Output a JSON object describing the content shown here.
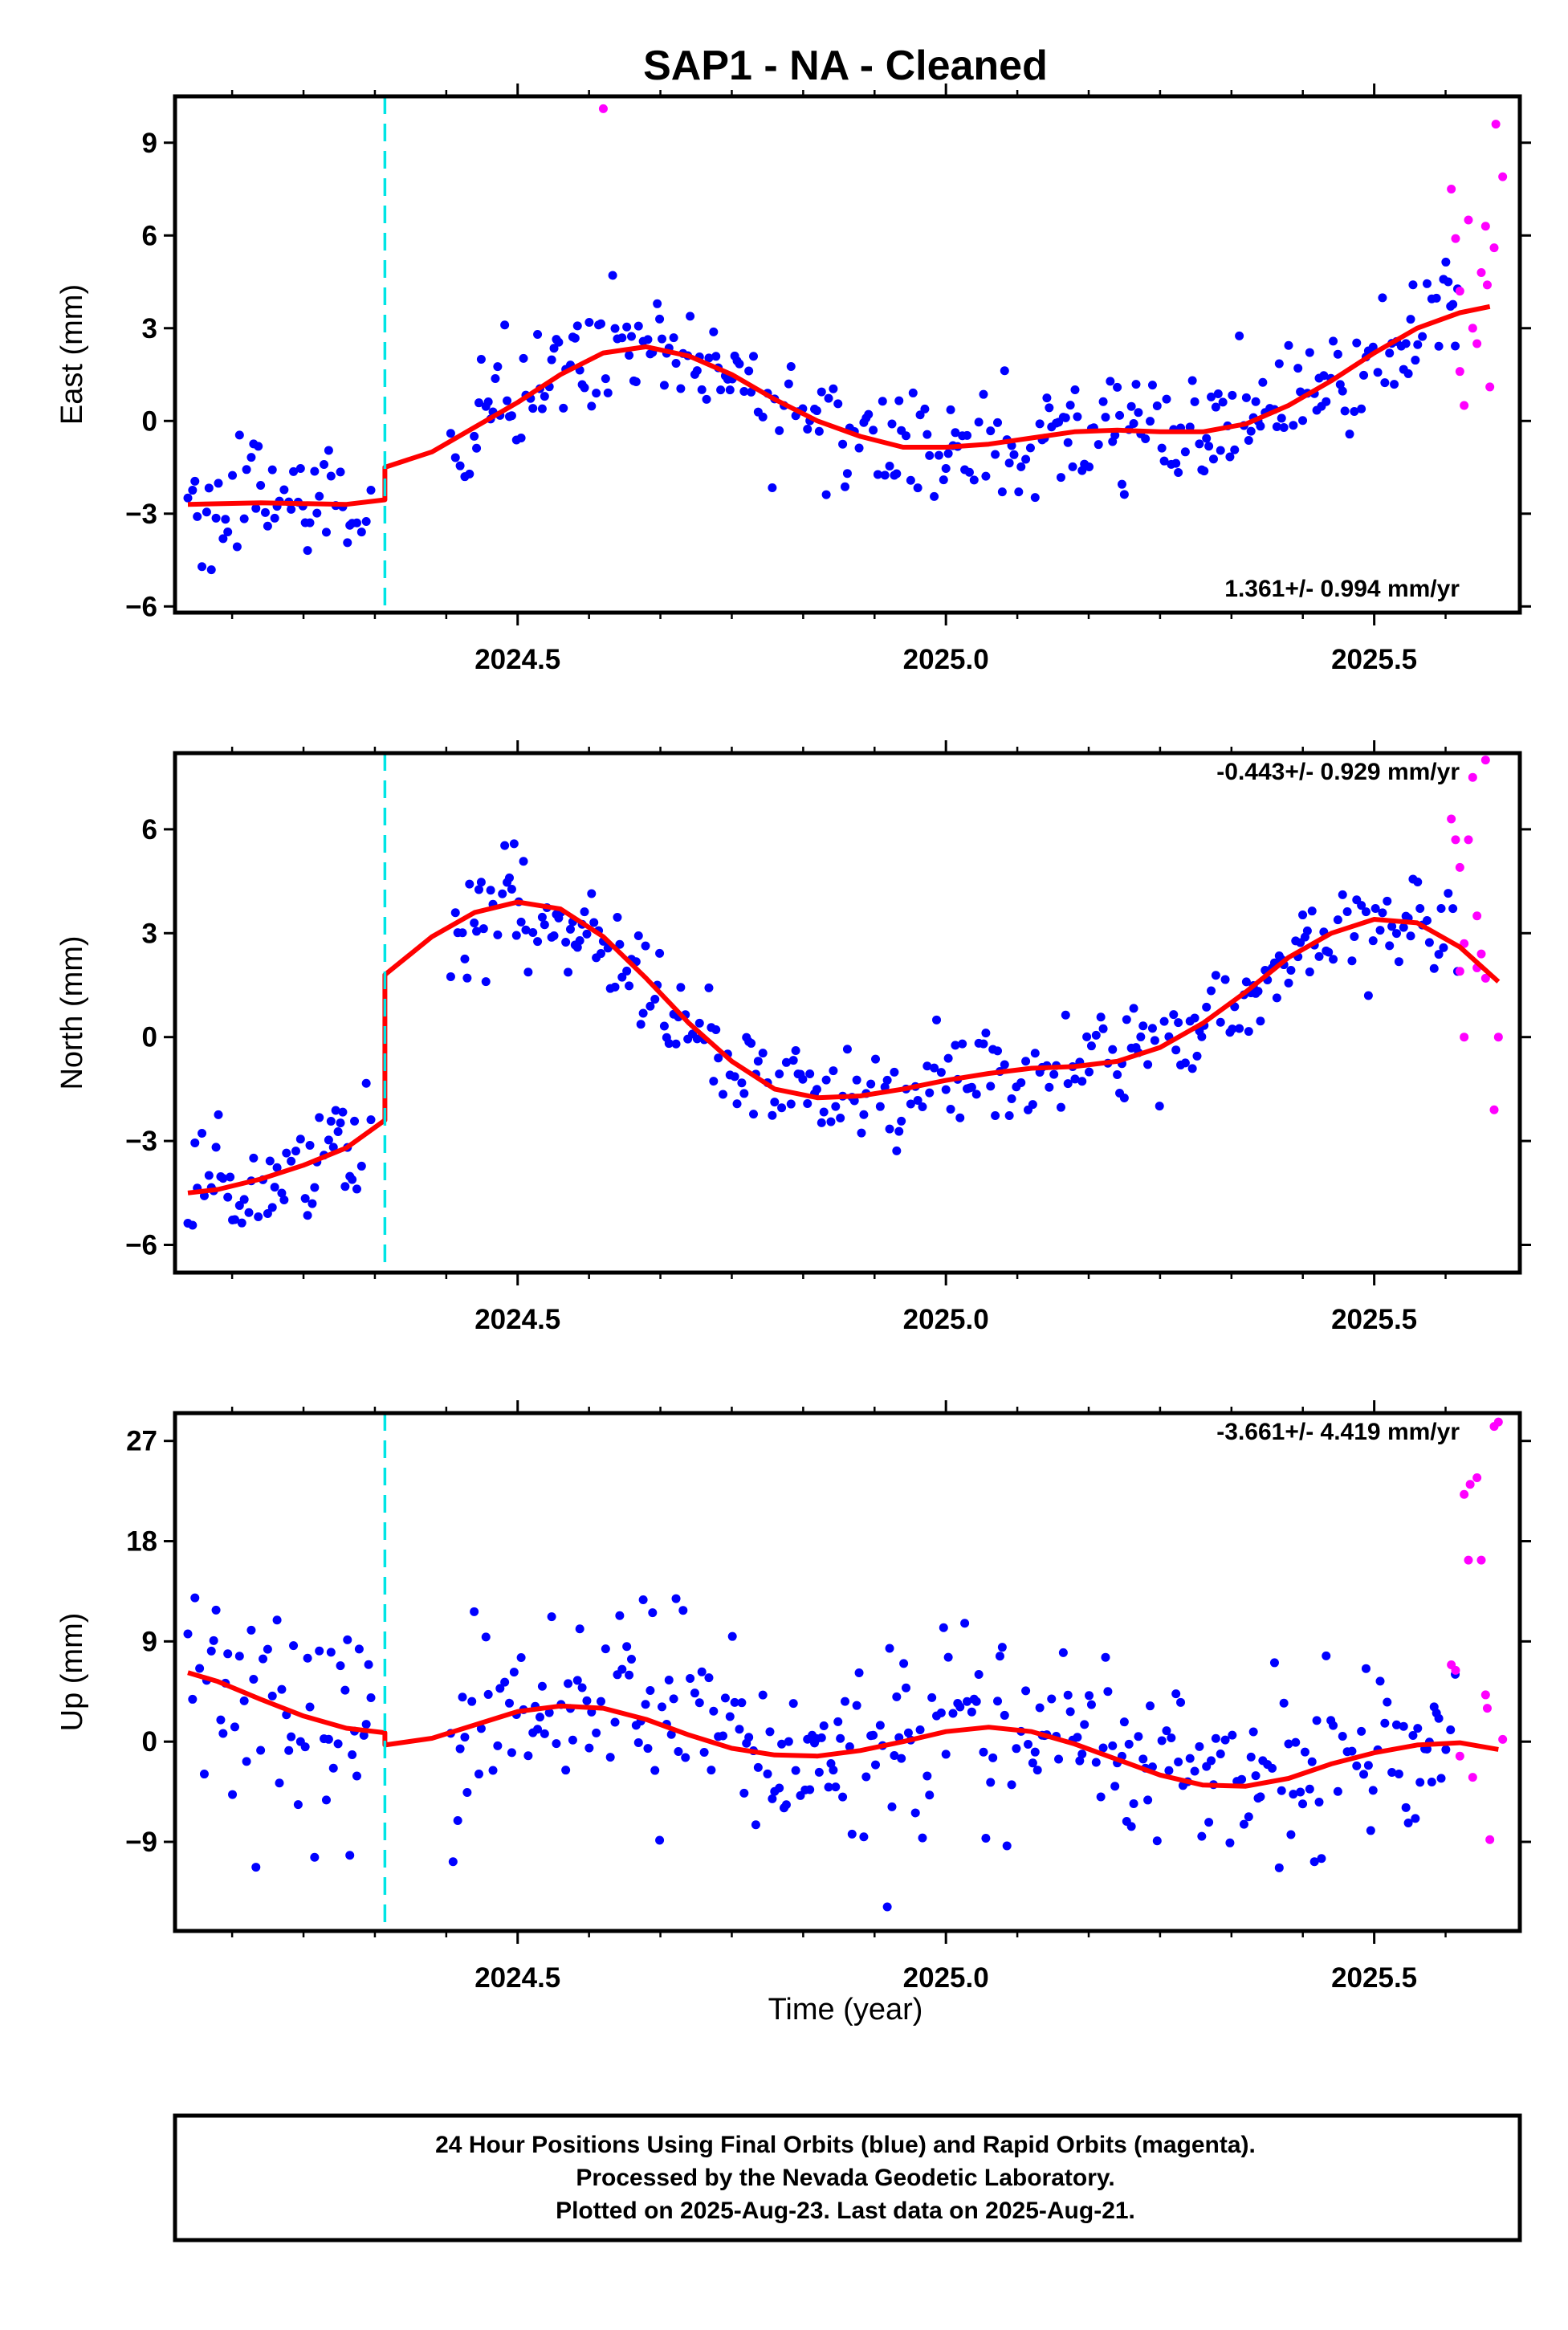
{
  "title": "SAP1  - NA - Cleaned",
  "xlabel": "Time (year)",
  "footer": {
    "line1": "24 Hour Positions Using Final Orbits (blue) and Rapid Orbits (magenta).",
    "line2": "Processed by the Nevada Geodetic Laboratory.",
    "line3": "Plotted on 2025-Aug-23. Last data on 2025-Aug-21."
  },
  "colors": {
    "final": "#0000ff",
    "rapid": "#ff00ff",
    "model": "#ff0000",
    "offset": "#00e5e5",
    "frame": "#000000"
  },
  "chart_data": [
    {
      "type": "scatter",
      "component": "east",
      "ylabel": "East (mm)",
      "rate_label": "1.361+/- 0.994 mm/yr",
      "rate_position": "bottom-right",
      "xlim": [
        2024.1,
        2025.67
      ],
      "ylim": [
        -6.2,
        10.5
      ],
      "yticks": [
        -6,
        -3,
        0,
        3,
        6,
        9
      ],
      "xticks": [
        2024.5,
        2025.0,
        2025.5
      ],
      "x_tick_labels": [
        "2024.5",
        "2025.0",
        "2025.5"
      ],
      "offset_epoch": 2024.345,
      "model_knots": [
        [
          2024.115,
          -2.7
        ],
        [
          2024.2,
          -2.65
        ],
        [
          2024.3,
          -2.7
        ],
        [
          2024.345,
          -2.55
        ],
        [
          2024.345,
          -1.5
        ],
        [
          2024.4,
          -1.0
        ],
        [
          2024.45,
          -0.2
        ],
        [
          2024.5,
          0.6
        ],
        [
          2024.55,
          1.5
        ],
        [
          2024.6,
          2.2
        ],
        [
          2024.65,
          2.4
        ],
        [
          2024.7,
          2.1
        ],
        [
          2024.75,
          1.5
        ],
        [
          2024.8,
          0.7
        ],
        [
          2024.85,
          0.0
        ],
        [
          2024.9,
          -0.5
        ],
        [
          2024.95,
          -0.85
        ],
        [
          2025.0,
          -0.85
        ],
        [
          2025.05,
          -0.75
        ],
        [
          2025.1,
          -0.55
        ],
        [
          2025.15,
          -0.35
        ],
        [
          2025.2,
          -0.3
        ],
        [
          2025.25,
          -0.35
        ],
        [
          2025.3,
          -0.35
        ],
        [
          2025.35,
          -0.1
        ],
        [
          2025.4,
          0.5
        ],
        [
          2025.45,
          1.3
        ],
        [
          2025.5,
          2.2
        ],
        [
          2025.55,
          3.0
        ],
        [
          2025.6,
          3.5
        ],
        [
          2025.635,
          3.7
        ]
      ],
      "model": {
        "pre": [
          -2.7,
          -2.5,
          0.4,
          0.0,
          0.0,
          0.0,
          0.0
        ],
        "post": [
          -0.6,
          4.9,
          2.2,
          0.55,
          0.1,
          -0.3,
          0.0
        ],
        "noise": 0.95
      },
      "rapid_points": [
        [
          2024.6,
          10.1
        ],
        [
          2025.59,
          7.5
        ],
        [
          2025.595,
          5.9
        ],
        [
          2025.6,
          4.2
        ],
        [
          2025.6,
          1.6
        ],
        [
          2025.605,
          0.5
        ],
        [
          2025.61,
          6.5
        ],
        [
          2025.615,
          3.0
        ],
        [
          2025.62,
          2.5
        ],
        [
          2025.625,
          4.8
        ],
        [
          2025.63,
          6.3
        ],
        [
          2025.632,
          4.4
        ],
        [
          2025.635,
          1.1
        ],
        [
          2025.64,
          5.6
        ],
        [
          2025.642,
          9.6
        ],
        [
          2025.65,
          7.9
        ]
      ]
    },
    {
      "type": "scatter",
      "component": "north",
      "ylabel": "North (mm)",
      "rate_label": "-0.443+/- 0.929 mm/yr",
      "rate_position": "top-right",
      "xlim": [
        2024.1,
        2025.67
      ],
      "ylim": [
        -6.8,
        8.2
      ],
      "yticks": [
        -6,
        -3,
        0,
        3,
        6
      ],
      "xticks": [
        2024.5,
        2025.0,
        2025.5
      ],
      "x_tick_labels": [
        "2024.5",
        "2025.0",
        "2025.5"
      ],
      "offset_epoch": 2024.345,
      "model_knots": [
        [
          2024.115,
          -4.5
        ],
        [
          2024.15,
          -4.4
        ],
        [
          2024.2,
          -4.1
        ],
        [
          2024.25,
          -3.7
        ],
        [
          2024.3,
          -3.2
        ],
        [
          2024.345,
          -2.4
        ],
        [
          2024.345,
          1.8
        ],
        [
          2024.4,
          2.9
        ],
        [
          2024.45,
          3.6
        ],
        [
          2024.5,
          3.9
        ],
        [
          2024.55,
          3.7
        ],
        [
          2024.6,
          2.9
        ],
        [
          2024.65,
          1.7
        ],
        [
          2024.7,
          0.4
        ],
        [
          2024.75,
          -0.7
        ],
        [
          2024.8,
          -1.5
        ],
        [
          2024.85,
          -1.75
        ],
        [
          2024.9,
          -1.7
        ],
        [
          2024.95,
          -1.5
        ],
        [
          2025.0,
          -1.25
        ],
        [
          2025.05,
          -1.05
        ],
        [
          2025.1,
          -0.9
        ],
        [
          2025.15,
          -0.85
        ],
        [
          2025.2,
          -0.7
        ],
        [
          2025.25,
          -0.3
        ],
        [
          2025.3,
          0.4
        ],
        [
          2025.35,
          1.3
        ],
        [
          2025.4,
          2.3
        ],
        [
          2025.45,
          3.0
        ],
        [
          2025.5,
          3.4
        ],
        [
          2025.55,
          3.3
        ],
        [
          2025.6,
          2.6
        ],
        [
          2025.645,
          1.6
        ]
      ],
      "model": {
        "pre": [
          -4.6,
          0.5,
          2.2,
          0.0,
          0.0,
          0.0,
          0.0
        ],
        "post": [
          0.8,
          2.1,
          4.3,
          1.2,
          0.5,
          0.25,
          0.0
        ],
        "noise": 0.75
      },
      "rapid_points": [
        [
          2025.59,
          6.3
        ],
        [
          2025.595,
          5.7
        ],
        [
          2025.6,
          4.9
        ],
        [
          2025.6,
          1.9
        ],
        [
          2025.605,
          2.7
        ],
        [
          2025.61,
          5.7
        ],
        [
          2025.615,
          7.5
        ],
        [
          2025.62,
          3.5
        ],
        [
          2025.62,
          2.0
        ],
        [
          2025.625,
          2.4
        ],
        [
          2025.63,
          8.0
        ],
        [
          2025.63,
          1.7
        ],
        [
          2025.64,
          -2.1
        ],
        [
          2025.645,
          0.0
        ],
        [
          2025.605,
          0.0
        ]
      ]
    },
    {
      "type": "scatter",
      "component": "up",
      "ylabel": "Up (mm)",
      "rate_label": "-3.661+/- 4.419 mm/yr",
      "rate_position": "top-right",
      "xlim": [
        2024.1,
        2025.67
      ],
      "ylim": [
        -17,
        29.5
      ],
      "yticks": [
        -9,
        0,
        9,
        18,
        27
      ],
      "xticks": [
        2024.5,
        2025.0,
        2025.5
      ],
      "x_tick_labels": [
        "2024.5",
        "2025.0",
        "2025.5"
      ],
      "offset_epoch": 2024.345,
      "model_knots": [
        [
          2024.115,
          6.2
        ],
        [
          2024.15,
          5.4
        ],
        [
          2024.2,
          3.8
        ],
        [
          2024.25,
          2.3
        ],
        [
          2024.3,
          1.2
        ],
        [
          2024.345,
          0.8
        ],
        [
          2024.345,
          -0.3
        ],
        [
          2024.4,
          0.3
        ],
        [
          2024.45,
          1.5
        ],
        [
          2024.5,
          2.7
        ],
        [
          2024.55,
          3.2
        ],
        [
          2024.6,
          3.0
        ],
        [
          2024.65,
          2.0
        ],
        [
          2024.7,
          0.6
        ],
        [
          2024.75,
          -0.6
        ],
        [
          2024.8,
          -1.2
        ],
        [
          2024.85,
          -1.3
        ],
        [
          2024.9,
          -0.8
        ],
        [
          2024.95,
          0.0
        ],
        [
          2025.0,
          0.9
        ],
        [
          2025.05,
          1.3
        ],
        [
          2025.1,
          0.9
        ],
        [
          2025.15,
          -0.2
        ],
        [
          2025.2,
          -1.6
        ],
        [
          2025.25,
          -3.0
        ],
        [
          2025.3,
          -3.9
        ],
        [
          2025.35,
          -4.0
        ],
        [
          2025.4,
          -3.3
        ],
        [
          2025.45,
          -2.0
        ],
        [
          2025.5,
          -1.0
        ],
        [
          2025.55,
          -0.3
        ],
        [
          2025.6,
          -0.1
        ],
        [
          2025.645,
          -0.7
        ]
      ],
      "model": {
        "pre": [
          0.8,
          0.0,
          0.0,
          3.5,
          2.0,
          0.0,
          0.0
        ],
        "post": [
          -0.5,
          -3.6,
          0.5,
          2.8,
          0.8,
          0.6,
          0.0
        ],
        "noise": 4.3
      },
      "rapid_points": [
        [
          2025.59,
          6.9
        ],
        [
          2025.595,
          6.4
        ],
        [
          2025.6,
          -1.3
        ],
        [
          2025.605,
          22.2
        ],
        [
          2025.61,
          16.3
        ],
        [
          2025.612,
          23.1
        ],
        [
          2025.615,
          -3.2
        ],
        [
          2025.62,
          23.7
        ],
        [
          2025.625,
          16.3
        ],
        [
          2025.63,
          4.2
        ],
        [
          2025.632,
          3.0
        ],
        [
          2025.635,
          -8.8
        ],
        [
          2025.64,
          28.3
        ],
        [
          2025.645,
          28.7
        ],
        [
          2025.65,
          0.2
        ]
      ]
    }
  ]
}
